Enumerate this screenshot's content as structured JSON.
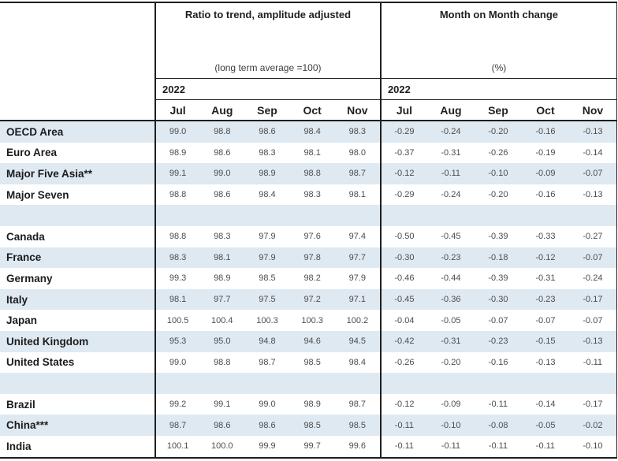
{
  "chart_data": {
    "type": "table",
    "groups": [
      {
        "title": "Ratio to trend, amplitude adjusted",
        "subtitle": "(long term average =100)",
        "year": "2022",
        "months": [
          "Jul",
          "Aug",
          "Sep",
          "Oct",
          "Nov"
        ]
      },
      {
        "title": "Month on Month change",
        "subtitle": "(%)",
        "year": "2022",
        "months": [
          "Jul",
          "Aug",
          "Sep",
          "Oct",
          "Nov"
        ]
      }
    ],
    "rows": [
      {
        "label": "OECD Area",
        "ratio_to_trend": [
          "99.0",
          "98.8",
          "98.6",
          "98.4",
          "98.3"
        ],
        "mom_change": [
          "-0.29",
          "-0.24",
          "-0.20",
          "-0.16",
          "-0.13"
        ]
      },
      {
        "label": "Euro Area",
        "ratio_to_trend": [
          "98.9",
          "98.6",
          "98.3",
          "98.1",
          "98.0"
        ],
        "mom_change": [
          "-0.37",
          "-0.31",
          "-0.26",
          "-0.19",
          "-0.14"
        ]
      },
      {
        "label": "Major Five Asia**",
        "ratio_to_trend": [
          "99.1",
          "99.0",
          "98.9",
          "98.8",
          "98.7"
        ],
        "mom_change": [
          "-0.12",
          "-0.11",
          "-0.10",
          "-0.09",
          "-0.07"
        ]
      },
      {
        "label": "Major Seven",
        "ratio_to_trend": [
          "98.8",
          "98.6",
          "98.4",
          "98.3",
          "98.1"
        ],
        "mom_change": [
          "-0.29",
          "-0.24",
          "-0.20",
          "-0.16",
          "-0.13"
        ]
      },
      {
        "label": "",
        "spacer": true
      },
      {
        "label": "Canada",
        "ratio_to_trend": [
          "98.8",
          "98.3",
          "97.9",
          "97.6",
          "97.4"
        ],
        "mom_change": [
          "-0.50",
          "-0.45",
          "-0.39",
          "-0.33",
          "-0.27"
        ]
      },
      {
        "label": "France",
        "ratio_to_trend": [
          "98.3",
          "98.1",
          "97.9",
          "97.8",
          "97.7"
        ],
        "mom_change": [
          "-0.30",
          "-0.23",
          "-0.18",
          "-0.12",
          "-0.07"
        ]
      },
      {
        "label": "Germany",
        "ratio_to_trend": [
          "99.3",
          "98.9",
          "98.5",
          "98.2",
          "97.9"
        ],
        "mom_change": [
          "-0.46",
          "-0.44",
          "-0.39",
          "-0.31",
          "-0.24"
        ]
      },
      {
        "label": "Italy",
        "ratio_to_trend": [
          "98.1",
          "97.7",
          "97.5",
          "97.2",
          "97.1"
        ],
        "mom_change": [
          "-0.45",
          "-0.36",
          "-0.30",
          "-0.23",
          "-0.17"
        ]
      },
      {
        "label": "Japan",
        "ratio_to_trend": [
          "100.5",
          "100.4",
          "100.3",
          "100.3",
          "100.2"
        ],
        "mom_change": [
          "-0.04",
          "-0.05",
          "-0.07",
          "-0.07",
          "-0.07"
        ]
      },
      {
        "label": "United Kingdom",
        "ratio_to_trend": [
          "95.3",
          "95.0",
          "94.8",
          "94.6",
          "94.5"
        ],
        "mom_change": [
          "-0.42",
          "-0.31",
          "-0.23",
          "-0.15",
          "-0.13"
        ]
      },
      {
        "label": "United States",
        "ratio_to_trend": [
          "99.0",
          "98.8",
          "98.7",
          "98.5",
          "98.4"
        ],
        "mom_change": [
          "-0.26",
          "-0.20",
          "-0.16",
          "-0.13",
          "-0.11"
        ]
      },
      {
        "label": "",
        "spacer": true
      },
      {
        "label": "Brazil",
        "ratio_to_trend": [
          "99.2",
          "99.1",
          "99.0",
          "98.9",
          "98.7"
        ],
        "mom_change": [
          "-0.12",
          "-0.09",
          "-0.11",
          "-0.14",
          "-0.17"
        ]
      },
      {
        "label": "China***",
        "ratio_to_trend": [
          "98.7",
          "98.6",
          "98.6",
          "98.5",
          "98.5"
        ],
        "mom_change": [
          "-0.11",
          "-0.10",
          "-0.08",
          "-0.05",
          "-0.02"
        ]
      },
      {
        "label": "India",
        "ratio_to_trend": [
          "100.1",
          "100.0",
          "99.9",
          "99.7",
          "99.6"
        ],
        "mom_change": [
          "-0.11",
          "-0.11",
          "-0.11",
          "-0.11",
          "-0.10"
        ]
      }
    ],
    "layout": {
      "legend_position": "none",
      "grid": "row-stripes",
      "stripe_starts_on_first_row": true
    },
    "colors": {
      "stripe": "#dfe9f1",
      "border": "#1f1f1f",
      "number_text": "#4d4d4d",
      "label_text": "#1c1c1c",
      "background": "#ffffff"
    }
  }
}
